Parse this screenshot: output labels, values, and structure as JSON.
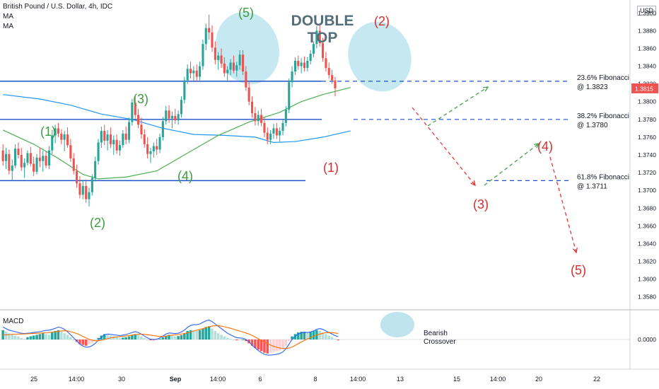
{
  "header": {
    "symbol": "British Pound / U.S. Dollar, 4h, IDC",
    "ma1": "MA",
    "ma2": "MA",
    "currency": "USD",
    "macd_label": "MACD"
  },
  "colors": {
    "up": "#26a69a",
    "down": "#ef5350",
    "ma_green": "#4caf50",
    "ma_blue": "#2196f3",
    "hline": "#1e50c8",
    "wave_green": "#3f9b3f",
    "wave_red": "#d32f2f",
    "highlight": "#a8dbe8",
    "macd_line": "#2962ff",
    "signal_line": "#ff6d00",
    "price_badge": "#ef5350"
  },
  "chart_data": {
    "type": "candlestick",
    "title": "British Pound / U.S. Dollar, 4h, IDC",
    "y_axis": {
      "ticks": [
        "1.3580",
        "1.3600",
        "1.3620",
        "1.3640",
        "1.3660",
        "1.3680",
        "1.3700",
        "1.3720",
        "1.3740",
        "1.3760",
        "1.3780",
        "1.3800",
        "1.3820",
        "1.3840",
        "1.3860",
        "1.3880",
        "1.3900"
      ],
      "range": [
        1.3575,
        1.3905
      ],
      "current_price": "1.3815"
    },
    "x_axis": {
      "ticks": [
        "25",
        "14:00",
        "30",
        "Sep",
        "14:00",
        "6",
        "8",
        "14:00",
        "13",
        "15",
        "14:00",
        "20",
        "22"
      ],
      "bar_count": 133,
      "projection_bars": 70
    },
    "candles": [
      [
        1.3745,
        1.3752,
        1.3728,
        1.3733
      ],
      [
        1.3733,
        1.3748,
        1.3724,
        1.3741
      ],
      [
        1.3741,
        1.3746,
        1.3718,
        1.3722
      ],
      [
        1.3722,
        1.3735,
        1.3711,
        1.3728
      ],
      [
        1.3728,
        1.3752,
        1.3725,
        1.3747
      ],
      [
        1.3747,
        1.3754,
        1.3736,
        1.374
      ],
      [
        1.374,
        1.3748,
        1.3722,
        1.3726
      ],
      [
        1.3726,
        1.3736,
        1.3714,
        1.3731
      ],
      [
        1.3731,
        1.3745,
        1.3728,
        1.3742
      ],
      [
        1.3742,
        1.3749,
        1.3727,
        1.373
      ],
      [
        1.373,
        1.3738,
        1.3716,
        1.3721
      ],
      [
        1.3721,
        1.3741,
        1.3718,
        1.3737
      ],
      [
        1.3737,
        1.3748,
        1.3726,
        1.3733
      ],
      [
        1.3733,
        1.3745,
        1.3721,
        1.3739
      ],
      [
        1.3739,
        1.3744,
        1.3725,
        1.3728
      ],
      [
        1.3728,
        1.375,
        1.3724,
        1.3745
      ],
      [
        1.3745,
        1.3768,
        1.3741,
        1.3762
      ],
      [
        1.3762,
        1.3774,
        1.3753,
        1.377
      ],
      [
        1.377,
        1.3776,
        1.376,
        1.3764
      ],
      [
        1.3764,
        1.3769,
        1.3752,
        1.3757
      ],
      [
        1.3757,
        1.3767,
        1.3744,
        1.3763
      ],
      [
        1.3763,
        1.3771,
        1.3748,
        1.3751
      ],
      [
        1.3751,
        1.3758,
        1.3732,
        1.3736
      ],
      [
        1.3736,
        1.3742,
        1.3718,
        1.3722
      ],
      [
        1.3722,
        1.3729,
        1.3703,
        1.3708
      ],
      [
        1.3708,
        1.3716,
        1.3691,
        1.3695
      ],
      [
        1.3695,
        1.3712,
        1.369,
        1.3705
      ],
      [
        1.3705,
        1.3712,
        1.3686,
        1.369
      ],
      [
        1.369,
        1.3703,
        1.3682,
        1.3698
      ],
      [
        1.3698,
        1.3718,
        1.3694,
        1.3714
      ],
      [
        1.3714,
        1.3738,
        1.371,
        1.3733
      ],
      [
        1.3733,
        1.3758,
        1.3729,
        1.3754
      ],
      [
        1.3754,
        1.3772,
        1.3748,
        1.3767
      ],
      [
        1.3767,
        1.3774,
        1.3751,
        1.3756
      ],
      [
        1.3756,
        1.3768,
        1.3745,
        1.3763
      ],
      [
        1.3763,
        1.3771,
        1.3748,
        1.3752
      ],
      [
        1.3752,
        1.3762,
        1.374,
        1.3757
      ],
      [
        1.3757,
        1.3763,
        1.3741,
        1.3745
      ],
      [
        1.3745,
        1.3756,
        1.3739,
        1.3751
      ],
      [
        1.3751,
        1.3768,
        1.3748,
        1.3764
      ],
      [
        1.3764,
        1.3772,
        1.3752,
        1.3757
      ],
      [
        1.3757,
        1.3782,
        1.3753,
        1.3777
      ],
      [
        1.3777,
        1.3803,
        1.3773,
        1.3799
      ],
      [
        1.3799,
        1.3806,
        1.3781,
        1.3785
      ],
      [
        1.3785,
        1.3792,
        1.377,
        1.3774
      ],
      [
        1.3774,
        1.3782,
        1.3758,
        1.3763
      ],
      [
        1.3763,
        1.3769,
        1.3748,
        1.3752
      ],
      [
        1.3752,
        1.376,
        1.3736,
        1.3741
      ],
      [
        1.3741,
        1.3748,
        1.3731,
        1.3744
      ],
      [
        1.3744,
        1.3754,
        1.3737,
        1.375
      ],
      [
        1.375,
        1.3758,
        1.374,
        1.3746
      ],
      [
        1.3746,
        1.3764,
        1.3742,
        1.376
      ],
      [
        1.376,
        1.3783,
        1.3756,
        1.3778
      ],
      [
        1.3778,
        1.3795,
        1.3774,
        1.379
      ],
      [
        1.379,
        1.3796,
        1.3776,
        1.3781
      ],
      [
        1.3781,
        1.3789,
        1.377,
        1.3784
      ],
      [
        1.3784,
        1.3792,
        1.3775,
        1.3779
      ],
      [
        1.3779,
        1.379,
        1.3774,
        1.3786
      ],
      [
        1.3786,
        1.3806,
        1.3782,
        1.3802
      ],
      [
        1.3802,
        1.3828,
        1.3798,
        1.3824
      ],
      [
        1.3824,
        1.3842,
        1.382,
        1.3837
      ],
      [
        1.3837,
        1.3845,
        1.3826,
        1.3832
      ],
      [
        1.3832,
        1.384,
        1.3822,
        1.3835
      ],
      [
        1.3835,
        1.3842,
        1.3823,
        1.3828
      ],
      [
        1.3828,
        1.3845,
        1.3824,
        1.384
      ],
      [
        1.384,
        1.387,
        1.3836,
        1.3865
      ],
      [
        1.3865,
        1.3888,
        1.3858,
        1.3883
      ],
      [
        1.3883,
        1.3898,
        1.387,
        1.3878
      ],
      [
        1.3878,
        1.3886,
        1.3856,
        1.3861
      ],
      [
        1.3861,
        1.3868,
        1.3842,
        1.3847
      ],
      [
        1.3847,
        1.3856,
        1.3836,
        1.3852
      ],
      [
        1.3852,
        1.386,
        1.3838,
        1.3843
      ],
      [
        1.3843,
        1.385,
        1.3828,
        1.3832
      ],
      [
        1.3832,
        1.384,
        1.3822,
        1.3836
      ],
      [
        1.3836,
        1.3848,
        1.383,
        1.3844
      ],
      [
        1.3844,
        1.3852,
        1.3832,
        1.3835
      ],
      [
        1.3835,
        1.3845,
        1.3828,
        1.3841
      ],
      [
        1.3841,
        1.3858,
        1.3836,
        1.3853
      ],
      [
        1.3853,
        1.3858,
        1.383,
        1.3834
      ],
      [
        1.3834,
        1.384,
        1.3812,
        1.3816
      ],
      [
        1.3816,
        1.3822,
        1.3796,
        1.38
      ],
      [
        1.38,
        1.3806,
        1.3782,
        1.3787
      ],
      [
        1.3787,
        1.3794,
        1.3773,
        1.3778
      ],
      [
        1.3778,
        1.379,
        1.3773,
        1.3785
      ],
      [
        1.3785,
        1.3792,
        1.3772,
        1.3776
      ],
      [
        1.3776,
        1.3782,
        1.376,
        1.3765
      ],
      [
        1.3765,
        1.3771,
        1.3752,
        1.3757
      ],
      [
        1.3757,
        1.3768,
        1.3752,
        1.3764
      ],
      [
        1.3764,
        1.3775,
        1.3758,
        1.377
      ],
      [
        1.377,
        1.3776,
        1.3758,
        1.3762
      ],
      [
        1.3762,
        1.3771,
        1.3755,
        1.3767
      ],
      [
        1.3767,
        1.378,
        1.3762,
        1.3776
      ],
      [
        1.3776,
        1.3795,
        1.3772,
        1.3791
      ],
      [
        1.3791,
        1.3826,
        1.3787,
        1.3822
      ],
      [
        1.3822,
        1.384,
        1.3816,
        1.3834
      ],
      [
        1.3834,
        1.385,
        1.383,
        1.3846
      ],
      [
        1.3846,
        1.3852,
        1.3836,
        1.384
      ],
      [
        1.384,
        1.3849,
        1.3832,
        1.3844
      ],
      [
        1.3844,
        1.3851,
        1.3834,
        1.3838
      ],
      [
        1.3838,
        1.385,
        1.3834,
        1.3846
      ],
      [
        1.3846,
        1.3858,
        1.3842,
        1.3854
      ],
      [
        1.3854,
        1.3868,
        1.385,
        1.3865
      ],
      [
        1.3865,
        1.3885,
        1.386,
        1.388
      ],
      [
        1.388,
        1.3888,
        1.3862,
        1.3866
      ],
      [
        1.3866,
        1.3872,
        1.3845,
        1.3849
      ],
      [
        1.3849,
        1.3856,
        1.3834,
        1.3838
      ],
      [
        1.3838,
        1.3844,
        1.3826,
        1.383
      ],
      [
        1.383,
        1.3836,
        1.382,
        1.3824
      ],
      [
        1.3824,
        1.3828,
        1.3806,
        1.3815
      ]
    ],
    "ma_green_y": [
      [
        0,
        1.3768
      ],
      [
        10,
        1.3752
      ],
      [
        18,
        1.3736
      ],
      [
        26,
        1.3718
      ],
      [
        31,
        1.3713
      ],
      [
        40,
        1.3715
      ],
      [
        50,
        1.3722
      ],
      [
        60,
        1.3742
      ],
      [
        70,
        1.3762
      ],
      [
        80,
        1.3777
      ],
      [
        90,
        1.3788
      ],
      [
        97,
        1.38
      ],
      [
        104,
        1.3808
      ],
      [
        113,
        1.3816
      ]
    ],
    "ma_blue_y": [
      [
        0,
        1.3808
      ],
      [
        12,
        1.3803
      ],
      [
        22,
        1.3796
      ],
      [
        32,
        1.3786
      ],
      [
        42,
        1.378
      ],
      [
        52,
        1.377
      ],
      [
        62,
        1.3763
      ],
      [
        72,
        1.3762
      ],
      [
        82,
        1.376
      ],
      [
        88,
        1.3754
      ],
      [
        95,
        1.3755
      ],
      [
        104,
        1.376
      ],
      [
        113,
        1.3767
      ]
    ],
    "levels": [
      {
        "price": 1.3823,
        "label": "23.6% Fibonacci",
        "sub": "@ 1.3823",
        "style": "dashed"
      },
      {
        "price": 1.378,
        "label": "38.2% Fibonacci",
        "sub": "@ 1.3780",
        "style": "dashed"
      },
      {
        "price": 1.3711,
        "label": "61.8% Fibonacci",
        "sub": "@ 1.3711",
        "style": "solid-then-dashed"
      }
    ],
    "hlines": [
      1.3823,
      1.378,
      1.3711
    ],
    "annotations": {
      "pattern": [
        "DOUBLE",
        "TOP"
      ],
      "green_waves": [
        {
          "label": "(1)",
          "bar": 17,
          "price": 1.379
        },
        {
          "label": "(2)",
          "bar": 31,
          "price": 1.367
        },
        {
          "label": "(3)",
          "bar": 42,
          "price": 1.3815
        },
        {
          "label": "(4)",
          "bar": 59,
          "price": 1.3718
        },
        {
          "label": "(5)",
          "bar": 79,
          "price": 1.391
        }
      ],
      "red_waves": [
        {
          "label": "(1)",
          "bar": 92,
          "price": 1.3739
        },
        {
          "label": "(2)",
          "bar": 107,
          "price": 1.391
        },
        {
          "label": "(3)",
          "bar": 150,
          "price": 1.369
        },
        {
          "label": "(4)",
          "bar": 170,
          "price": 1.3763
        },
        {
          "label": "(5)",
          "bar": 182,
          "price": 1.362
        }
      ],
      "projection_red": [
        [
          113,
          1.3808
        ],
        [
          148,
          1.371
        ],
        [
          170,
          1.3762
        ],
        [
          180,
          1.3645
        ]
      ],
      "projection_green": [
        [
          148,
          1.371
        ],
        [
          170,
          1.3762
        ],
        [
          113,
          1.3808
        ],
        [
          153,
          1.3823
        ]
      ],
      "macd_note": [
        "Bearish",
        "Crossover"
      ]
    },
    "macd": {
      "zero_label": "0.0000",
      "hist": [
        0.6,
        0.5,
        0.4,
        0.3,
        0.25,
        0.2,
        0.1,
        0.05,
        0.15,
        0.2,
        0.25,
        0.3,
        0.35,
        0.4,
        0.35,
        0.3,
        0.45,
        0.55,
        0.6,
        0.5,
        0.4,
        0.3,
        0.15,
        0.0,
        -0.15,
        -0.3,
        -0.35,
        -0.4,
        -0.3,
        -0.2,
        -0.05,
        0.1,
        0.25,
        0.35,
        0.3,
        0.25,
        0.2,
        0.15,
        0.1,
        0.12,
        0.15,
        0.2,
        0.3,
        0.35,
        0.3,
        0.2,
        0.1,
        0.0,
        -0.05,
        -0.05,
        -0.02,
        0.05,
        0.15,
        0.25,
        0.3,
        0.25,
        0.2,
        0.22,
        0.28,
        0.4,
        0.55,
        0.6,
        0.58,
        0.55,
        0.6,
        0.7,
        0.8,
        0.85,
        0.7,
        0.55,
        0.4,
        0.3,
        0.2,
        0.1,
        0.05,
        0.0,
        -0.05,
        -0.02,
        0.0,
        -0.1,
        -0.25,
        -0.4,
        -0.55,
        -0.65,
        -0.75,
        -0.85,
        -0.9,
        -0.85,
        -0.8,
        -0.75,
        -0.7,
        -0.6,
        -0.4,
        -0.1,
        0.2,
        0.35,
        0.45,
        0.5,
        0.5,
        0.48,
        0.5,
        0.55,
        0.6,
        0.55,
        0.45,
        0.35,
        0.25,
        0.15,
        0.05,
        -0.05
      ],
      "macd_line": [
        0.8,
        0.7,
        0.6,
        0.55,
        0.5,
        0.45,
        0.4,
        0.38,
        0.4,
        0.42,
        0.45,
        0.48,
        0.5,
        0.55,
        0.58,
        0.6,
        0.65,
        0.72,
        0.8,
        0.75,
        0.65,
        0.5,
        0.3,
        0.1,
        -0.1,
        -0.3,
        -0.42,
        -0.5,
        -0.48,
        -0.4,
        -0.25,
        -0.05,
        0.15,
        0.3,
        0.35,
        0.33,
        0.3,
        0.28,
        0.25,
        0.28,
        0.32,
        0.38,
        0.45,
        0.5,
        0.45,
        0.35,
        0.22,
        0.1,
        0.02,
        0.0,
        0.02,
        0.1,
        0.22,
        0.35,
        0.42,
        0.4,
        0.38,
        0.4,
        0.48,
        0.6,
        0.78,
        0.9,
        0.95,
        0.95,
        1.0,
        1.1,
        1.2,
        1.25,
        1.15,
        1.0,
        0.85,
        0.7,
        0.55,
        0.4,
        0.3,
        0.2,
        0.12,
        0.1,
        0.08,
        0.0,
        -0.15,
        -0.35,
        -0.55,
        -0.7,
        -0.85,
        -0.95,
        -1.0,
        -1.0,
        -0.98,
        -0.95,
        -0.9,
        -0.8,
        -0.6,
        -0.3,
        0.0,
        0.2,
        0.35,
        0.42,
        0.45,
        0.45,
        0.48,
        0.55,
        0.65,
        0.7,
        0.65,
        0.55,
        0.45,
        0.35,
        0.25,
        0.18
      ],
      "signal_line": [
        0.3,
        0.3,
        0.32,
        0.33,
        0.34,
        0.35,
        0.35,
        0.36,
        0.37,
        0.38,
        0.39,
        0.4,
        0.41,
        0.42,
        0.43,
        0.45,
        0.47,
        0.5,
        0.53,
        0.55,
        0.56,
        0.55,
        0.5,
        0.45,
        0.38,
        0.3,
        0.2,
        0.1,
        0.02,
        -0.05,
        -0.08,
        -0.08,
        -0.05,
        0.0,
        0.05,
        0.1,
        0.14,
        0.17,
        0.19,
        0.21,
        0.23,
        0.25,
        0.28,
        0.31,
        0.33,
        0.34,
        0.33,
        0.31,
        0.28,
        0.25,
        0.22,
        0.2,
        0.2,
        0.22,
        0.25,
        0.28,
        0.3,
        0.32,
        0.35,
        0.38,
        0.42,
        0.48,
        0.54,
        0.6,
        0.65,
        0.7,
        0.76,
        0.82,
        0.86,
        0.88,
        0.88,
        0.86,
        0.82,
        0.77,
        0.72,
        0.66,
        0.6,
        0.54,
        0.48,
        0.42,
        0.35,
        0.26,
        0.16,
        0.05,
        -0.06,
        -0.17,
        -0.27,
        -0.36,
        -0.44,
        -0.5,
        -0.55,
        -0.58,
        -0.58,
        -0.55,
        -0.48,
        -0.38,
        -0.27,
        -0.16,
        -0.06,
        0.03,
        0.12,
        0.2,
        0.28,
        0.35,
        0.4,
        0.44,
        0.45,
        0.44,
        0.42,
        0.38
      ]
    }
  }
}
